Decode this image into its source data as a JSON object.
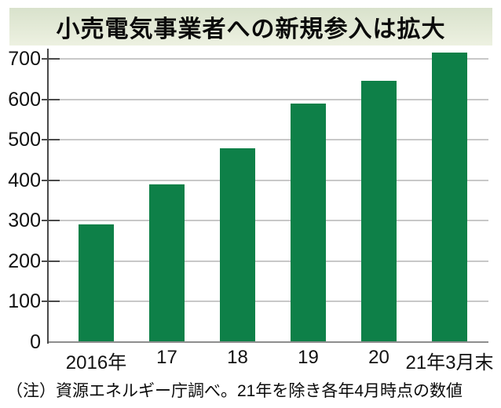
{
  "title": "小売電気事業者への新規参入は拡大",
  "note": "（注）資源エネルギー庁調べ。21年を除き各年4月時点の数値",
  "colors": {
    "bar": "#0e8048",
    "grid": "#c8c8c8",
    "axis": "#4a4a4a",
    "baseline": "#8e8e8e",
    "band_top": "#d9e2cc",
    "band_bottom": "#edf1e1"
  },
  "chart_data": {
    "type": "bar",
    "categories": [
      "2016年",
      "17",
      "18",
      "19",
      "20",
      "21年3月末"
    ],
    "values": [
      290,
      390,
      480,
      590,
      645,
      715
    ],
    "title": "小売電気事業者への新規参入は拡大",
    "xlabel": "",
    "ylabel": "",
    "ylim": [
      0,
      700
    ],
    "yticks": [
      0,
      100,
      200,
      300,
      400,
      500,
      600,
      700
    ],
    "grid": true,
    "legend": false,
    "note": "（注）資源エネルギー庁調べ。21年を除き各年4月時点の数値"
  }
}
